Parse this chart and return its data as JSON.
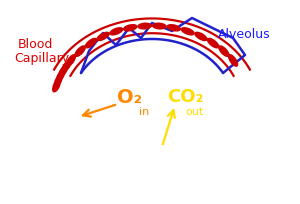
{
  "bg_color": "#ffffff",
  "alveolus_label": "Alveolus",
  "alveolus_label_color": "#1a1aff",
  "blood_cap_label1": "Blood",
  "blood_cap_label2": "Capillary",
  "blood_cap_label_color": "#dd0000",
  "o2_label": "O₂",
  "o2_sub": "in",
  "o2_color": "#ff8800",
  "co2_label": "CO₂",
  "co2_sub": "out",
  "co2_color": "#ffdd00",
  "red_cell_color": "#cc0000",
  "alveolus_line_color": "#2222cc",
  "capillary_line_color": "#cc0000",
  "arrow_o2_color": "#ff8800",
  "arrow_co2_color": "#ffdd00",
  "figw": 3.0,
  "figh": 2.05,
  "dpi": 100
}
